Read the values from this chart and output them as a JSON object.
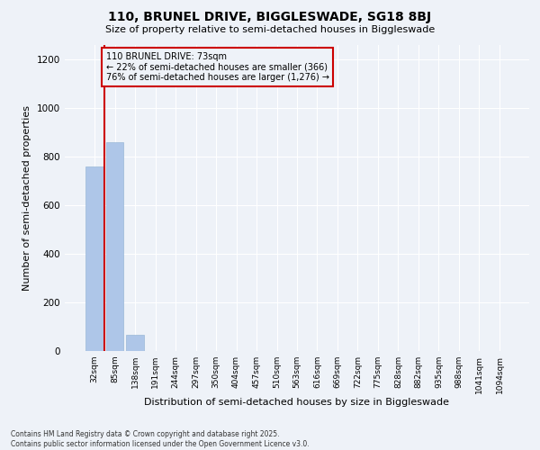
{
  "title_line1": "110, BRUNEL DRIVE, BIGGLESWADE, SG18 8BJ",
  "title_line2": "Size of property relative to semi-detached houses in Biggleswade",
  "xlabel": "Distribution of semi-detached houses by size in Biggleswade",
  "ylabel": "Number of semi-detached properties",
  "categories": [
    "32sqm",
    "85sqm",
    "138sqm",
    "191sqm",
    "244sqm",
    "297sqm",
    "350sqm",
    "404sqm",
    "457sqm",
    "510sqm",
    "563sqm",
    "616sqm",
    "669sqm",
    "722sqm",
    "775sqm",
    "828sqm",
    "882sqm",
    "935sqm",
    "988sqm",
    "1041sqm",
    "1094sqm"
  ],
  "values": [
    760,
    860,
    65,
    0,
    0,
    0,
    0,
    0,
    0,
    0,
    0,
    0,
    0,
    0,
    0,
    0,
    0,
    0,
    0,
    0,
    0
  ],
  "bar_color": "#aec6e8",
  "bar_edge_color": "#9ab8d8",
  "property_line_color": "#cc0000",
  "annotation_text": "110 BRUNEL DRIVE: 73sqm\n← 22% of semi-detached houses are smaller (366)\n76% of semi-detached houses are larger (1,276) →",
  "annotation_box_color": "#cc0000",
  "ylim": [
    0,
    1260
  ],
  "yticks": [
    0,
    200,
    400,
    600,
    800,
    1000,
    1200
  ],
  "background_color": "#eef2f8",
  "grid_color": "#ffffff",
  "footer_line1": "Contains HM Land Registry data © Crown copyright and database right 2025.",
  "footer_line2": "Contains public sector information licensed under the Open Government Licence v3.0."
}
